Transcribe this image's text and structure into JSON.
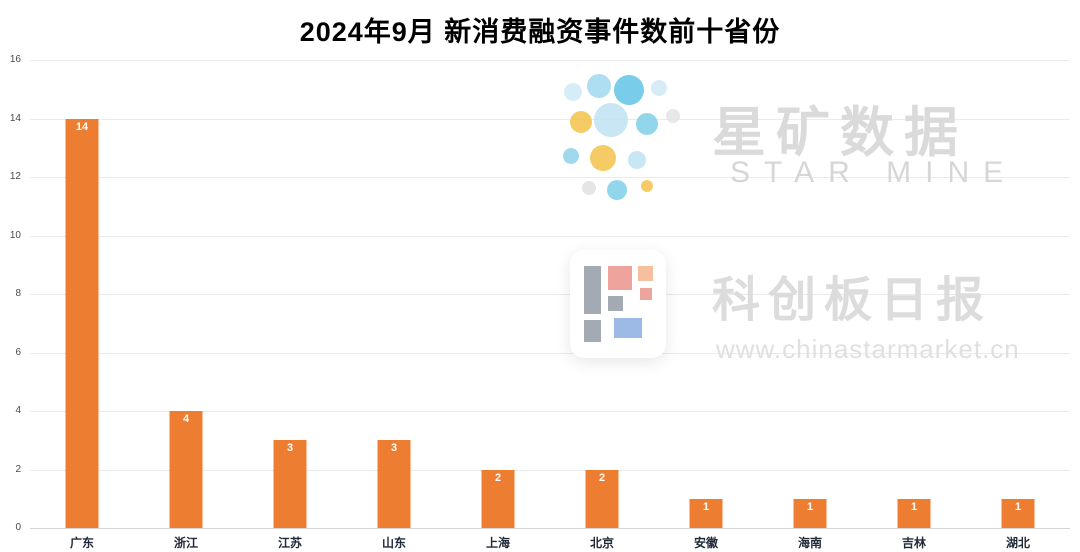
{
  "chart_data": {
    "type": "bar",
    "title": "2024年9月 新消费融资事件数前十省份",
    "categories": [
      "广东",
      "浙江",
      "江苏",
      "山东",
      "上海",
      "北京",
      "安徽",
      "海南",
      "吉林",
      "湖北"
    ],
    "values": [
      14,
      4,
      3,
      3,
      2,
      2,
      1,
      1,
      1,
      1
    ],
    "xlabel": "",
    "ylabel": "",
    "ylim": [
      0,
      16
    ],
    "yticks": [
      0,
      2,
      4,
      6,
      8,
      10,
      12,
      14,
      16
    ],
    "grid": true,
    "legend": "none",
    "bar_color": "#ED7D31",
    "value_label_color": "#FFFFFF"
  },
  "watermarks": {
    "star_mine": {
      "cn": "星矿数据",
      "en": "STAR MINE"
    },
    "star_daily": {
      "cn": "科创板日报",
      "url": "www.chinastarmarket.cn"
    }
  },
  "colors": {
    "bar": "#ED7D31",
    "grid": "#ebebeb",
    "axis_text": "#4a4a4a",
    "category_text": "#1f2937",
    "watermark_text": "#dadada"
  }
}
